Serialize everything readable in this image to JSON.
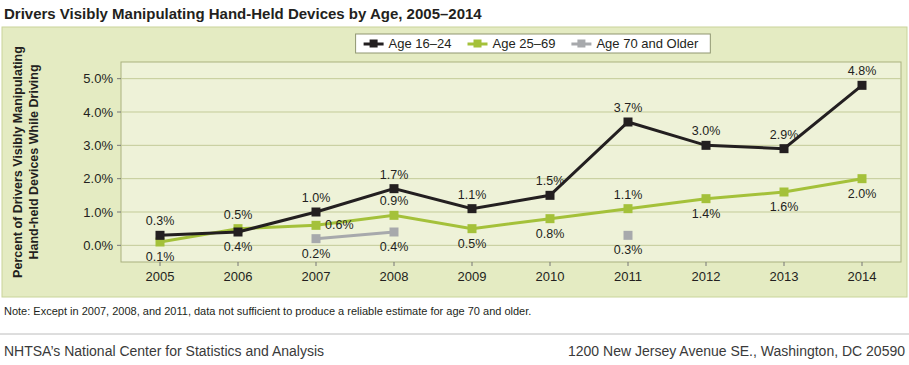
{
  "chart_data": {
    "type": "line",
    "title": "Drivers Visibly Manipulating Hand-Held Devices by Age, 2005–2014",
    "y_label": [
      "Percent of Drivers Visibly Manipulating",
      "Hand-held Devices While Driving"
    ],
    "categories": [
      "2005",
      "2006",
      "2007",
      "2008",
      "2009",
      "2010",
      "2011",
      "2012",
      "2013",
      "2014"
    ],
    "series": [
      {
        "name": "Age 16–24",
        "color": "#231f20",
        "marker": "square",
        "values": [
          0.3,
          0.4,
          1.0,
          1.7,
          1.1,
          1.5,
          3.7,
          3.0,
          2.9,
          4.8
        ],
        "value_labels": [
          "0.3%",
          "0.4%",
          "1.0%",
          "1.7%",
          "1.1%",
          "1.5%",
          "3.7%",
          "3.0%",
          "2.9%",
          "4.8%"
        ]
      },
      {
        "name": "Age 25–69",
        "color": "#a4c13a",
        "marker": "square",
        "values": [
          0.1,
          0.5,
          0.6,
          0.9,
          0.5,
          0.8,
          1.1,
          1.4,
          1.6,
          2.0
        ],
        "value_labels": [
          "0.1%",
          "0.5%",
          "0.6%",
          "0.9%",
          "0.5%",
          "0.8%",
          "1.1%",
          "1.4%",
          "1.6%",
          "2.0%"
        ]
      },
      {
        "name": "Age 70 and Older",
        "color": "#a7a9ac",
        "marker": "square",
        "values": [
          null,
          null,
          0.2,
          0.4,
          null,
          null,
          0.3,
          null,
          null,
          null
        ],
        "value_labels": [
          null,
          null,
          "0.2%",
          "0.4%",
          null,
          null,
          "0.3%",
          null,
          null,
          null
        ]
      }
    ],
    "ylim": [
      -0.5,
      5.5
    ],
    "yticks": [
      {
        "value": 0,
        "label": "0.0%"
      },
      {
        "value": 1,
        "label": "1.0%"
      },
      {
        "value": 2,
        "label": "2.0%"
      },
      {
        "value": 3,
        "label": "3.0%"
      },
      {
        "value": 4,
        "label": "4.0%"
      },
      {
        "value": 5,
        "label": "5.0%"
      }
    ],
    "grid": true,
    "legend": "top",
    "data_labels": true,
    "note": "Note: Except in 2007, 2008, and 2011, data not sufficient to produce a reliable estimate for age 70 and older."
  },
  "footer": {
    "left": "NHTSA’s National Center for Statistics and Analysis",
    "right": "1200 New Jersey Avenue SE., Washington, DC 20590"
  }
}
